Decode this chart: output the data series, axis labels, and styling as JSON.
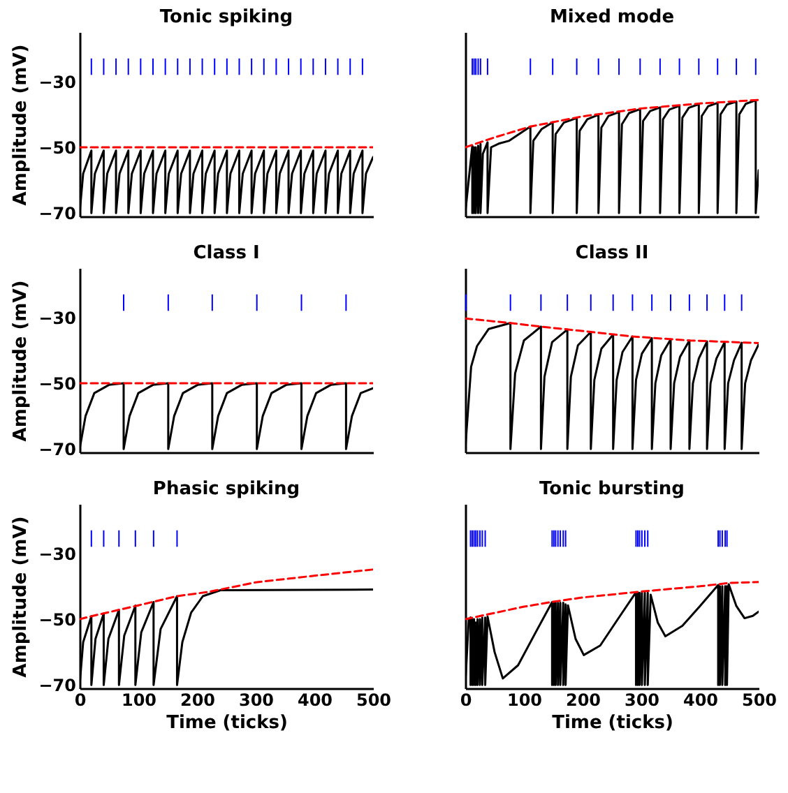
{
  "chart_data": [
    {
      "type": "line",
      "title": "Tonic spiking",
      "ylabel": "Amplitude (mV)",
      "xlim": [
        0,
        500
      ],
      "ylim": [
        -71,
        -15
      ],
      "xticks": [
        0,
        100,
        200,
        300,
        400,
        500
      ],
      "yticks": [
        -70,
        -50,
        -30
      ],
      "tick_labels": "y",
      "series": [
        {
          "type": "bar",
          "color": "#0000ff",
          "x": [
            20,
            41,
            62,
            83,
            104,
            125,
            146,
            167,
            188,
            209,
            230,
            251,
            272,
            293,
            314,
            335,
            356,
            377,
            398,
            419,
            440,
            461,
            482
          ],
          "base": [
            -28,
            -28,
            -28,
            -28,
            -28,
            -28,
            -28,
            -28,
            -28,
            -28,
            -28,
            -28,
            -28,
            -28,
            -28,
            -28,
            -28,
            -28,
            -28,
            -28,
            -28,
            -28,
            -28
          ],
          "values": [
            5,
            5,
            5,
            5,
            5,
            5,
            5,
            5,
            5,
            5,
            5,
            5,
            5,
            5,
            5,
            5,
            5,
            5,
            5,
            5,
            5,
            5,
            5
          ]
        },
        {
          "color": "#000000",
          "x": [
            0,
            6,
            20,
            20,
            26,
            41,
            41,
            47,
            62,
            62,
            68,
            83,
            83,
            89,
            104,
            104,
            110,
            125,
            125,
            131,
            146,
            146,
            152,
            167,
            167,
            173,
            188,
            188,
            194,
            209,
            209,
            215,
            230,
            230,
            236,
            251,
            251,
            257,
            272,
            272,
            278,
            293,
            293,
            299,
            314,
            314,
            320,
            335,
            335,
            341,
            356,
            356,
            362,
            377,
            377,
            383,
            398,
            398,
            404,
            419,
            419,
            425,
            440,
            440,
            446,
            461,
            461,
            467,
            482,
            482,
            488,
            500
          ],
          "values": [
            -70,
            -58,
            -51,
            -70,
            -58,
            -51,
            -70,
            -58,
            -51,
            -70,
            -58,
            -51,
            -70,
            -58,
            -51,
            -70,
            -58,
            -51,
            -70,
            -58,
            -51,
            -70,
            -58,
            -51,
            -70,
            -58,
            -51,
            -70,
            -58,
            -51,
            -70,
            -58,
            -51,
            -70,
            -58,
            -51,
            -70,
            -58,
            -51,
            -70,
            -58,
            -51,
            -70,
            -58,
            -51,
            -70,
            -58,
            -51,
            -70,
            -58,
            -51,
            -70,
            -58,
            -51,
            -70,
            -58,
            -51,
            -70,
            -58,
            -51,
            -70,
            -58,
            -51,
            -70,
            -58,
            -51,
            -70,
            -58,
            -51,
            -70,
            -58,
            -53
          ]
        },
        {
          "color": "#ff0000",
          "line_style": "dashed",
          "x": [
            0,
            500
          ],
          "values": [
            -50,
            -50
          ]
        }
      ]
    },
    {
      "type": "line",
      "title": "Mixed mode",
      "xlim": [
        0,
        500
      ],
      "ylim": [
        -71,
        -15
      ],
      "xticks": [
        0,
        100,
        200,
        300,
        400,
        500
      ],
      "yticks": [
        -70,
        -50,
        -30
      ],
      "tick_labels": false,
      "series": [
        {
          "type": "bar",
          "color": "#0000ff",
          "x": [
            12,
            15,
            18,
            22,
            26,
            38,
            111,
            149,
            190,
            227,
            262,
            298,
            332,
            365,
            398,
            430,
            462,
            495
          ],
          "base": [
            -28,
            -28,
            -28,
            -28,
            -28,
            -28,
            -28,
            -28,
            -28,
            -28,
            -28,
            -28,
            -28,
            -28,
            -28,
            -28,
            -28,
            -28
          ],
          "values": [
            5,
            5,
            5,
            5,
            5,
            5,
            5,
            5,
            5,
            5,
            5,
            5,
            5,
            5,
            5,
            5,
            5,
            5
          ]
        },
        {
          "color": "#000000",
          "x": [
            0,
            12,
            12,
            15,
            15,
            18,
            18,
            22,
            22,
            26,
            26,
            30,
            38,
            38,
            44,
            57,
            75,
            111,
            111,
            116,
            130,
            149,
            149,
            154,
            168,
            190,
            190,
            195,
            208,
            227,
            227,
            232,
            244,
            262,
            262,
            267,
            279,
            298,
            298,
            303,
            315,
            332,
            332,
            337,
            348,
            365,
            365,
            370,
            381,
            398,
            398,
            403,
            414,
            430,
            430,
            435,
            446,
            462,
            462,
            467,
            478,
            495,
            495,
            500
          ],
          "values": [
            -70,
            -49.5,
            -70,
            -50,
            -70,
            -50,
            -70,
            -49.5,
            -70,
            -49,
            -70,
            -52,
            -48.5,
            -70,
            -50,
            -48.9,
            -48,
            -43.7,
            -70,
            -48,
            -44.5,
            -42.4,
            -70,
            -46,
            -42.5,
            -41.1,
            -70,
            -45,
            -41.5,
            -40.1,
            -70,
            -44,
            -40.5,
            -39.3,
            -70,
            -43,
            -39.6,
            -38.4,
            -70,
            -42,
            -39,
            -37.9,
            -70,
            -41.5,
            -38.5,
            -37.4,
            -70,
            -41,
            -38,
            -36.9,
            -70,
            -40.5,
            -37.5,
            -36.5,
            -70,
            -40,
            -37,
            -36.1,
            -70,
            -40,
            -36.8,
            -35.7,
            -70,
            -57
          ]
        },
        {
          "color": "#ff0000",
          "line_style": "dashed",
          "x": [
            0,
            50,
            111,
            200,
            300,
            400,
            500
          ],
          "values": [
            -50,
            -47,
            -43.7,
            -40.6,
            -38.2,
            -36.7,
            -35.6
          ]
        }
      ]
    },
    {
      "type": "line",
      "title": "Class I",
      "ylabel": "Amplitude (mV)",
      "xlim": [
        0,
        500
      ],
      "ylim": [
        -71,
        -15
      ],
      "xticks": [
        0,
        100,
        200,
        300,
        400,
        500
      ],
      "yticks": [
        -70,
        -50,
        -30
      ],
      "tick_labels": "y",
      "series": [
        {
          "type": "bar",
          "color": "#0000ff",
          "x": [
            75,
            151,
            226,
            302,
            378,
            454
          ],
          "base": [
            -28,
            -28,
            -28,
            -28,
            -28,
            -28
          ],
          "values": [
            5,
            5,
            5,
            5,
            5,
            5
          ]
        },
        {
          "color": "#000000",
          "x": [
            0,
            10,
            25,
            50,
            75,
            75,
            85,
            100,
            125,
            151,
            151,
            161,
            176,
            201,
            226,
            226,
            236,
            251,
            276,
            302,
            302,
            312,
            327,
            352,
            378,
            378,
            388,
            403,
            428,
            454,
            454,
            464,
            479,
            500
          ],
          "values": [
            -70,
            -60,
            -53,
            -50.5,
            -50,
            -70,
            -60,
            -53,
            -50.5,
            -50,
            -70,
            -60,
            -53,
            -50.5,
            -50,
            -70,
            -60,
            -53,
            -50.5,
            -50,
            -70,
            -60,
            -53,
            -50.5,
            -50,
            -70,
            -60,
            -53,
            -50.5,
            -50,
            -70,
            -60,
            -53,
            -51.5
          ]
        },
        {
          "color": "#ff0000",
          "line_style": "dashed",
          "x": [
            0,
            500
          ],
          "values": [
            -50,
            -50
          ]
        }
      ]
    },
    {
      "type": "line",
      "title": "Class II",
      "xlim": [
        0,
        500
      ],
      "ylim": [
        -71,
        -15
      ],
      "xticks": [
        0,
        100,
        200,
        300,
        400,
        500
      ],
      "yticks": [
        -70,
        -50,
        -30
      ],
      "tick_labels": false,
      "series": [
        {
          "type": "bar",
          "color": "#0000ff",
          "x": [
            1,
            77,
            129,
            174,
            214,
            252,
            285,
            318,
            350,
            382,
            412,
            442,
            471
          ],
          "base": [
            -28,
            -28,
            -28,
            -28,
            -28,
            -28,
            -28,
            -28,
            -28,
            -28,
            -28,
            -28,
            -28
          ],
          "values": [
            5,
            5,
            5,
            5,
            5,
            5,
            5,
            5,
            5,
            5,
            5,
            5,
            5
          ]
        },
        {
          "color": "#000000",
          "x": [
            0,
            10,
            20,
            40,
            77,
            77,
            85,
            100,
            129,
            129,
            135,
            148,
            174,
            174,
            180,
            192,
            214,
            214,
            220,
            232,
            252,
            252,
            258,
            268,
            285,
            285,
            291,
            301,
            318,
            318,
            324,
            334,
            350,
            350,
            356,
            366,
            382,
            382,
            388,
            398,
            412,
            412,
            418,
            428,
            442,
            442,
            448,
            458,
            471,
            471,
            477,
            487,
            500
          ],
          "values": [
            -70,
            -45,
            -38.7,
            -33.5,
            -31.7,
            -70,
            -47,
            -37,
            -32.8,
            -70,
            -48,
            -37.5,
            -33.7,
            -70,
            -48,
            -38.5,
            -34.4,
            -70,
            -49,
            -39.5,
            -35.2,
            -70,
            -49,
            -40.5,
            -35.8,
            -70,
            -49,
            -41,
            -36.3,
            -70,
            -50,
            -41.5,
            -36.7,
            -70,
            -50,
            -42,
            -37,
            -70,
            -50,
            -42.5,
            -37.3,
            -70,
            -50,
            -42.5,
            -37.5,
            -70,
            -50,
            -43,
            -37.7,
            -70,
            -50,
            -43,
            -38.2
          ]
        },
        {
          "color": "#ff0000",
          "line_style": "dashed",
          "x": [
            0,
            77,
            129,
            214,
            285,
            382,
            500
          ],
          "values": [
            -30.3,
            -31.7,
            -32.8,
            -34.4,
            -35.8,
            -37,
            -37.8
          ]
        }
      ]
    },
    {
      "type": "line",
      "title": "Phasic spiking",
      "xlabel": "Time (ticks)",
      "ylabel": "Amplitude (mV)",
      "xlim": [
        0,
        500
      ],
      "ylim": [
        -71,
        -15
      ],
      "xticks": [
        0,
        100,
        200,
        300,
        400,
        500
      ],
      "yticks": [
        -70,
        -50,
        -30
      ],
      "series": [
        {
          "type": "bar",
          "color": "#0000ff",
          "x": [
            20,
            41,
            67,
            95,
            126,
            166
          ],
          "base": [
            -28,
            -28,
            -28,
            -28,
            -28,
            -28
          ],
          "values": [
            5,
            5,
            5,
            5,
            5,
            5
          ]
        },
        {
          "color": "#000000",
          "x": [
            0,
            6,
            20,
            20,
            27,
            41,
            41,
            49,
            67,
            67,
            76,
            95,
            95,
            105,
            126,
            126,
            138,
            166,
            166,
            175,
            190,
            210,
            240,
            500
          ],
          "values": [
            -70,
            -57,
            -49.1,
            -70,
            -56,
            -48.3,
            -70,
            -56,
            -47.2,
            -70,
            -55,
            -45.9,
            -70,
            -54,
            -44.8,
            -70,
            -53,
            -43,
            -70,
            -57,
            -48,
            -43,
            -41.2,
            -41
          ]
        },
        {
          "color": "#ff0000",
          "line_style": "dashed",
          "x": [
            0,
            20,
            100,
            166,
            220,
            300,
            400,
            500
          ],
          "values": [
            -50,
            -49.1,
            -45.8,
            -43,
            -41.7,
            -38.8,
            -36.8,
            -34.9
          ]
        }
      ]
    },
    {
      "type": "line",
      "title": "Tonic bursting",
      "xlabel": "Time (ticks)",
      "xlim": [
        0,
        500
      ],
      "ylim": [
        -71,
        -15
      ],
      "xticks": [
        0,
        100,
        200,
        300,
        400,
        500
      ],
      "yticks": [
        -70,
        -50,
        -30
      ],
      "tick_labels": "x",
      "series": [
        {
          "type": "bar",
          "color": "#0000ff",
          "x": [
            9,
            12,
            15,
            18,
            21,
            25,
            29,
            34,
            148,
            151,
            154,
            158,
            162,
            167,
            171,
            291,
            294,
            297,
            301,
            306,
            311,
            431,
            434,
            438,
            443,
            446
          ],
          "base": [
            -28,
            -28,
            -28,
            -28,
            -28,
            -28,
            -28,
            -28,
            -28,
            -28,
            -28,
            -28,
            -28,
            -28,
            -28,
            -28,
            -28,
            -28,
            -28,
            -28,
            -28,
            -28,
            -28,
            -28,
            -28,
            -28
          ],
          "values": [
            5,
            5,
            5,
            5,
            5,
            5,
            5,
            5,
            5,
            5,
            5,
            5,
            5,
            5,
            5,
            5,
            5,
            5,
            5,
            5,
            5,
            5,
            5,
            5,
            5,
            5
          ]
        },
        {
          "color": "#000000",
          "x": [
            0,
            6,
            9,
            9,
            12,
            12,
            15,
            15,
            18,
            18,
            21,
            21,
            25,
            25,
            29,
            29,
            34,
            34,
            38,
            50,
            64,
            90,
            120,
            148,
            148,
            151,
            151,
            154,
            154,
            158,
            158,
            162,
            162,
            167,
            167,
            171,
            171,
            175,
            188,
            202,
            230,
            260,
            291,
            291,
            294,
            294,
            297,
            297,
            301,
            301,
            306,
            306,
            311,
            311,
            316,
            328,
            341,
            370,
            400,
            431,
            431,
            434,
            434,
            438,
            438,
            443,
            443,
            446,
            446,
            449,
            462,
            476,
            490,
            500
          ],
          "values": [
            -70,
            -50,
            -49.5,
            -70,
            -50,
            -70,
            -50,
            -70,
            -51,
            -70,
            -50,
            -70,
            -50,
            -70,
            -49.5,
            -70,
            -49.5,
            -70,
            -49.2,
            -60,
            -68,
            -64,
            -54,
            -44.8,
            -70,
            -45,
            -70,
            -45,
            -70,
            -45,
            -70,
            -45,
            -70,
            -45,
            -70,
            -45.5,
            -70,
            -45.8,
            -56,
            -60.9,
            -58,
            -50,
            -41.8,
            -70,
            -42,
            -70,
            -42,
            -70,
            -42,
            -70,
            -42,
            -70,
            -42,
            -70,
            -42.6,
            -51,
            -55.2,
            -52,
            -46,
            -39.6,
            -70,
            -40,
            -70,
            -40,
            -70,
            -40,
            -70,
            -40,
            -70,
            -39.4,
            -46,
            -49.7,
            -49,
            -47.7
          ]
        },
        {
          "color": "#ff0000",
          "line_style": "dashed",
          "x": [
            0,
            100,
            150,
            200,
            300,
            400,
            450,
            500
          ],
          "values": [
            -50,
            -46.2,
            -44.7,
            -43.4,
            -41.6,
            -40,
            -39,
            -38.7
          ]
        }
      ]
    }
  ]
}
